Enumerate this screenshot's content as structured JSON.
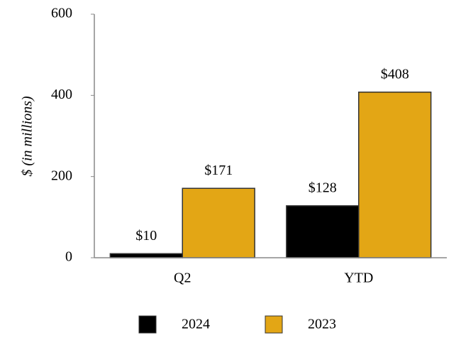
{
  "chart_data": {
    "type": "bar",
    "y_label": "$ (in millions)",
    "categories": [
      "Q2",
      "YTD"
    ],
    "series": [
      {
        "name": "2024",
        "color": "#000000",
        "values": [
          10,
          128
        ],
        "value_labels": [
          "$10",
          "$128"
        ]
      },
      {
        "name": "2023",
        "color": "#e3a615",
        "values": [
          171,
          408
        ],
        "value_labels": [
          "$171",
          "$408"
        ]
      }
    ],
    "ylim": [
      0,
      600
    ],
    "yticks": [
      0,
      200,
      400,
      600
    ],
    "grid": false,
    "legend": "bottom"
  }
}
